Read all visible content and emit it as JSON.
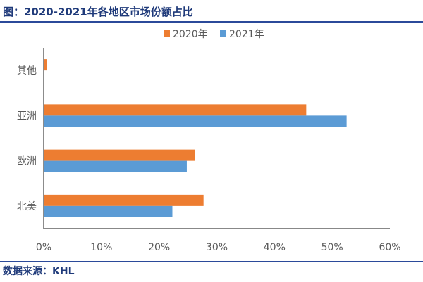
{
  "title": "图：2020-2021年各地区市场份额占比",
  "source": "数据来源：KHL",
  "chart_data": {
    "type": "bar",
    "orientation": "horizontal",
    "categories": [
      "其他",
      "亚洲",
      "欧洲",
      "北美"
    ],
    "series": [
      {
        "name": "2020年",
        "color": "#ED7D31",
        "values": [
          0.5,
          45.5,
          26.2,
          27.7
        ]
      },
      {
        "name": "2021年",
        "color": "#5B9BD5",
        "values": [
          0.1,
          52.5,
          24.8,
          22.3
        ]
      }
    ],
    "xlim": [
      0,
      60
    ],
    "xticks": [
      "0%",
      "10%",
      "20%",
      "30%",
      "40%",
      "50%",
      "60%"
    ],
    "unit": "%",
    "grid": false,
    "legend": "top"
  }
}
